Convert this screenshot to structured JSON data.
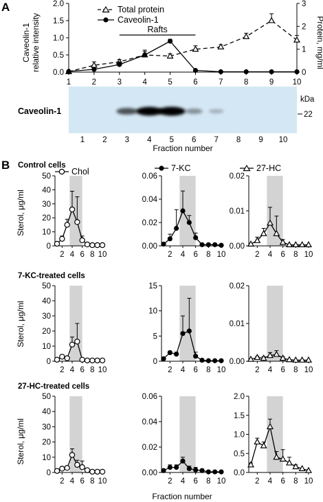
{
  "panel_a": {
    "label": "A",
    "legend": {
      "total_protein": "Total protein",
      "caveolin": "Caveolin-1"
    },
    "rafts_label": "Rafts",
    "y_left_label_line1": "Caveolin-1",
    "y_left_label_line2": "relative intensity",
    "y_right_label": "Protein, mg/ml",
    "blot": {
      "protein_label": "Caveolin-1",
      "kda_label": "kDa",
      "marker": "22",
      "xlabel": "Fraction number"
    }
  },
  "panel_b": {
    "label": "B",
    "row_titles": [
      "Control cells",
      "7-KC-treated cells",
      "27-HC-treated cells"
    ],
    "column_legends": [
      "Chol",
      "7-KC",
      "27-HC"
    ],
    "ylabel": "Sterol, μg/ml",
    "xlabel": "Fraction number"
  },
  "chart_data": [
    {
      "type": "line",
      "panel": "A",
      "x": [
        1,
        2,
        3,
        4,
        5,
        6,
        7,
        8,
        9,
        10
      ],
      "series": [
        {
          "name": "Total protein",
          "axis": "right",
          "style": "open-triangle-dashed",
          "values": [
            0.02,
            0.3,
            0.45,
            0.75,
            0.7,
            1.0,
            1.1,
            1.55,
            2.25,
            1.4
          ],
          "errors": [
            0.05,
            0.15,
            0.1,
            0.15,
            0.1,
            0.15,
            0.1,
            0.15,
            0.3,
            0.2
          ]
        },
        {
          "name": "Caveolin-1",
          "axis": "left",
          "style": "filled-circle-solid",
          "values": [
            0.02,
            0.08,
            0.22,
            0.5,
            0.9,
            0.05,
            0.01,
            0.01,
            0.01,
            0.01
          ],
          "errors": [
            0.0,
            0.05,
            0.08,
            0.14,
            0.06,
            0.03,
            0.0,
            0.0,
            0.0,
            0.0
          ]
        }
      ],
      "ylim_left": [
        0,
        2.0
      ],
      "yticks_left": [
        0.0,
        0.5,
        1.0,
        1.5,
        2.0
      ],
      "ylim_right": [
        0,
        3
      ],
      "yticks_right": [
        0,
        1,
        2,
        3
      ],
      "xticks": [
        1,
        2,
        3,
        4,
        5,
        6,
        7,
        8,
        9,
        10
      ],
      "shaded_region": [
        3,
        6
      ]
    },
    {
      "type": "blot",
      "panel": "A",
      "lanes": [
        "1",
        "2",
        "3",
        "4",
        "5",
        "6",
        "7",
        "8",
        "9",
        "10"
      ],
      "band_intensity": [
        0,
        0,
        0.55,
        0.95,
        1.0,
        0.25,
        0.08,
        0,
        0,
        0
      ]
    },
    {
      "type": "line",
      "panel": "B",
      "row": "Control cells",
      "series_name": "Chol",
      "marker": "open-circle",
      "x": [
        1,
        2,
        3,
        4,
        5,
        6,
        7,
        8,
        9,
        10
      ],
      "values": [
        1.5,
        5,
        15,
        26,
        17,
        4,
        1,
        0.5,
        0.5,
        0.5
      ],
      "errors": [
        0,
        2,
        4,
        13,
        18,
        3,
        0,
        0,
        0,
        0
      ],
      "ylim": [
        0,
        50
      ],
      "yticks": [
        0,
        10,
        20,
        30,
        40,
        50
      ],
      "yticklabels": [
        "0",
        "10",
        "20",
        "30",
        "40",
        "50"
      ]
    },
    {
      "type": "line",
      "panel": "B",
      "row": "Control cells",
      "series_name": "7-KC",
      "marker": "filled-circle",
      "x": [
        1,
        2,
        3,
        4,
        5,
        6,
        7,
        8,
        9,
        10
      ],
      "values": [
        0.0015,
        0.006,
        0.015,
        0.03,
        0.02,
        0.007,
        0.001,
        0.001,
        0.001,
        0.0005
      ],
      "errors": [
        0,
        0.004,
        0.016,
        0.017,
        0.006,
        0.004,
        0,
        0,
        0,
        0
      ],
      "ylim": [
        0,
        0.06
      ],
      "yticks": [
        0,
        0.02,
        0.04,
        0.06
      ],
      "yticklabels": [
        "0.00",
        "0.02",
        "0.04",
        "0.06"
      ]
    },
    {
      "type": "line",
      "panel": "B",
      "row": "Control cells",
      "series_name": "27-HC",
      "marker": "open-triangle",
      "x": [
        1,
        2,
        3,
        4,
        5,
        6,
        7,
        8,
        9,
        10
      ],
      "values": [
        0.0005,
        0.0015,
        0.0035,
        0.0065,
        0.0035,
        0.001,
        0.0003,
        0.0003,
        0.0003,
        0.0003
      ],
      "errors": [
        0,
        0.001,
        0.0015,
        0.0045,
        0.005,
        0.0008,
        0,
        0,
        0,
        0
      ],
      "ylim": [
        0,
        0.02
      ],
      "yticks": [
        0,
        0.01,
        0.02
      ],
      "yticklabels": [
        "0.00",
        "0.01",
        "0.02"
      ]
    },
    {
      "type": "line",
      "panel": "B",
      "row": "7-KC-treated cells",
      "series_name": "Chol",
      "marker": "open-circle",
      "x": [
        1,
        2,
        3,
        4,
        5,
        6,
        7,
        8,
        9,
        10
      ],
      "values": [
        1,
        3,
        2,
        11,
        13,
        1,
        0.5,
        0.5,
        0.5,
        0.5
      ],
      "errors": [
        0,
        1,
        1,
        5,
        12,
        0.5,
        0,
        0,
        0,
        0
      ],
      "ylim": [
        0,
        50
      ],
      "yticks": [
        0,
        10,
        20,
        30,
        40,
        50
      ],
      "yticklabels": [
        "0",
        "10",
        "20",
        "30",
        "40",
        "50"
      ]
    },
    {
      "type": "line",
      "panel": "B",
      "row": "7-KC-treated cells",
      "series_name": "7-KC",
      "marker": "filled-circle",
      "x": [
        1,
        2,
        3,
        4,
        5,
        6,
        7,
        8,
        9,
        10
      ],
      "values": [
        0.5,
        1.7,
        1.4,
        5.5,
        6.0,
        1.0,
        0.2,
        0.1,
        0.1,
        0.1
      ],
      "errors": [
        0,
        0.3,
        0.4,
        3.5,
        6.5,
        0.8,
        0,
        0,
        0,
        0
      ],
      "ylim": [
        0,
        15
      ],
      "yticks": [
        0,
        5,
        10,
        15
      ],
      "yticklabels": [
        "0",
        "5",
        "10",
        "15"
      ]
    },
    {
      "type": "line",
      "panel": "B",
      "row": "7-KC-treated cells",
      "series_name": "27-HC",
      "marker": "open-triangle",
      "x": [
        1,
        2,
        3,
        4,
        5,
        6,
        7,
        8,
        9,
        10
      ],
      "values": [
        0.0005,
        0.001,
        0.0008,
        0.0015,
        0.0018,
        0.0008,
        0.0004,
        0.0003,
        0.0003,
        0.0003
      ],
      "errors": [
        0,
        0.0003,
        0.0004,
        0.0008,
        0.001,
        0.0004,
        0,
        0,
        0,
        0
      ],
      "ylim": [
        0,
        0.02
      ],
      "yticks": [
        0,
        0.01,
        0.02
      ],
      "yticklabels": [
        "0.00",
        "0.01",
        "0.02"
      ]
    },
    {
      "type": "line",
      "panel": "B",
      "row": "27-HC-treated cells",
      "series_name": "Chol",
      "marker": "open-circle",
      "x": [
        1,
        2,
        3,
        4,
        5,
        6,
        7,
        8,
        9,
        10
      ],
      "values": [
        1,
        2.5,
        3,
        11.5,
        5,
        3.5,
        1.5,
        0.5,
        0.5,
        0.5
      ],
      "errors": [
        0,
        1,
        1,
        4,
        3,
        4,
        0.5,
        0,
        0,
        0
      ],
      "ylim": [
        0,
        50
      ],
      "yticks": [
        0,
        10,
        20,
        30,
        40,
        50
      ],
      "yticklabels": [
        "0",
        "10",
        "20",
        "30",
        "40",
        "50"
      ]
    },
    {
      "type": "line",
      "panel": "B",
      "row": "27-HC-treated cells",
      "series_name": "7-KC",
      "marker": "filled-circle",
      "x": [
        1,
        2,
        3,
        4,
        5,
        6,
        7,
        8,
        9,
        10
      ],
      "values": [
        0.0015,
        0.004,
        0.004,
        0.009,
        0.003,
        0.002,
        0.0015,
        0.0005,
        0.0005,
        0.0005
      ],
      "errors": [
        0,
        0.002,
        0.002,
        0.003,
        0.002,
        0.002,
        0.001,
        0,
        0,
        0
      ],
      "ylim": [
        0,
        0.06
      ],
      "yticks": [
        0,
        0.02,
        0.04,
        0.06
      ],
      "yticklabels": [
        "0.00",
        "0.02",
        "0.04",
        "0.06"
      ]
    },
    {
      "type": "line",
      "panel": "B",
      "row": "27-HC-treated cells",
      "series_name": "27-HC",
      "marker": "open-triangle",
      "x": [
        1,
        2,
        3,
        4,
        5,
        6,
        7,
        8,
        9,
        10
      ],
      "values": [
        0.2,
        0.8,
        0.7,
        1.2,
        0.4,
        0.35,
        0.25,
        0.15,
        0.1,
        0.05
      ],
      "errors": [
        0.05,
        0.1,
        0.1,
        0.2,
        0.15,
        0.25,
        0.15,
        0.05,
        0,
        0
      ],
      "ylim": [
        0,
        2.0
      ],
      "yticks": [
        0,
        0.5,
        1.0,
        1.5,
        2.0
      ],
      "yticklabels": [
        "0.0",
        "0.5",
        "1.0",
        "1.5",
        "2.0"
      ]
    }
  ]
}
